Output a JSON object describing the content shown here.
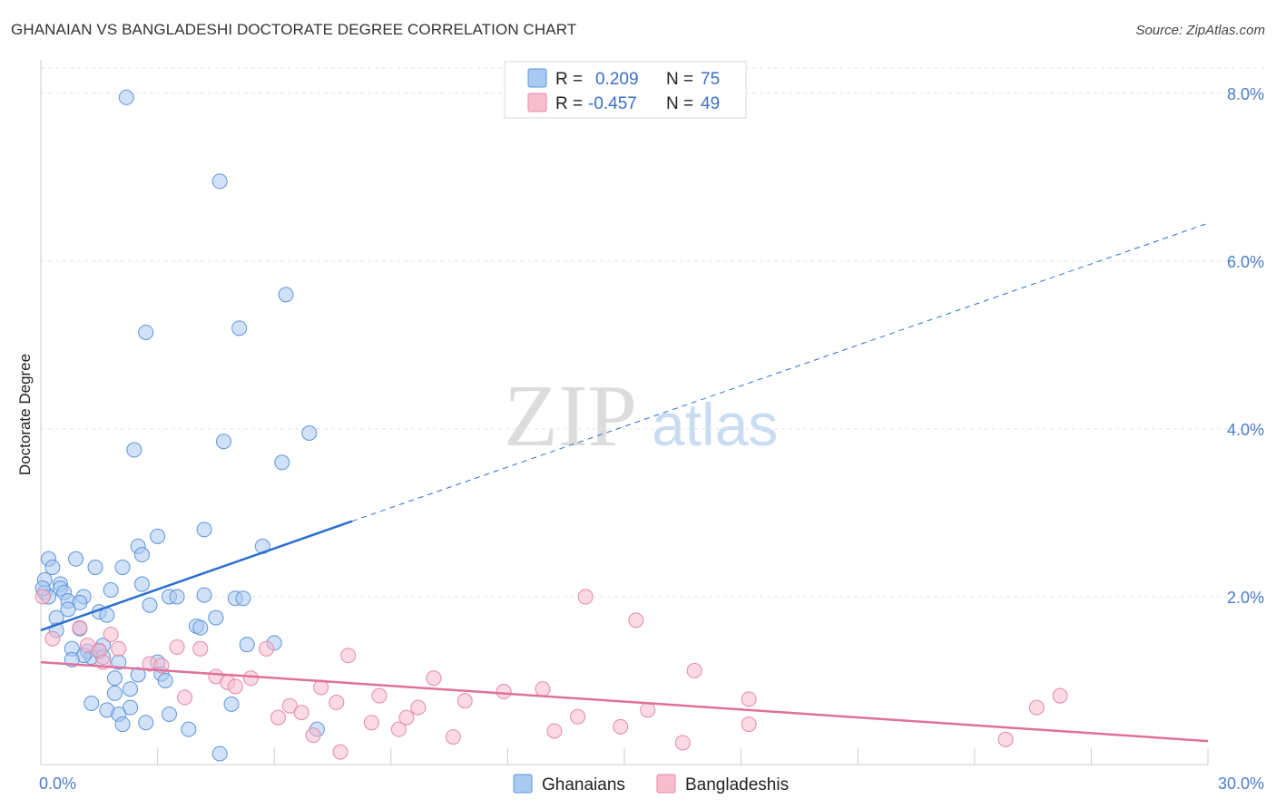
{
  "header": {
    "title": "GHANAIAN VS BANGLADESHI DOCTORATE DEGREE CORRELATION CHART",
    "source": "Source: ZipAtlas.com"
  },
  "watermark": {
    "zip": "ZIP",
    "atlas": "atlas"
  },
  "legend": {
    "rows": [
      {
        "r_label": "R =",
        "r_value": "0.209",
        "n_label": "N =",
        "n_value": "75",
        "color": "#a9c9f2"
      },
      {
        "r_label": "R =",
        "r_value": "-0.457",
        "n_label": "N =",
        "n_value": "49",
        "color": "#f7bccd"
      }
    ]
  },
  "bottom_legend": {
    "items": [
      {
        "label": "Ghanaians",
        "color": "#a9c9f2"
      },
      {
        "label": "Bangladeshis",
        "color": "#f7bccd"
      }
    ]
  },
  "chart_data": {
    "type": "scatter",
    "title": "GHANAIAN VS BANGLADESHI DOCTORATE DEGREE CORRELATION CHART",
    "xlabel": "",
    "ylabel": "Doctorate Degree",
    "xlim": [
      0,
      30
    ],
    "ylim": [
      0,
      8.3
    ],
    "x_tick_labels": [
      "0.0%",
      "30.0%"
    ],
    "y_ticks": [
      2,
      4,
      6,
      8
    ],
    "y_tick_labels": [
      "2.0%",
      "4.0%",
      "6.0%",
      "8.0%"
    ],
    "grid": true,
    "legend_position": "top-center",
    "series": [
      {
        "name": "Ghanaians",
        "color": "#a9c9f2",
        "stroke": "#5f95d8",
        "line_color": "#2a6fd0",
        "trend": {
          "x0": 0,
          "y0": 1.6,
          "x1": 8,
          "y1": 2.9,
          "dash_to_x": 30,
          "dash_to_y": 6.45
        },
        "points": [
          [
            2.2,
            7.95
          ],
          [
            4.6,
            6.95
          ],
          [
            6.3,
            5.6
          ],
          [
            5.1,
            5.2
          ],
          [
            2.7,
            5.15
          ],
          [
            6.9,
            3.95
          ],
          [
            4.7,
            3.85
          ],
          [
            2.4,
            3.75
          ],
          [
            6.2,
            3.6
          ],
          [
            4.2,
            2.8
          ],
          [
            3.0,
            2.72
          ],
          [
            2.5,
            2.6
          ],
          [
            5.7,
            2.6
          ],
          [
            2.6,
            2.5
          ],
          [
            0.2,
            2.45
          ],
          [
            0.9,
            2.45
          ],
          [
            0.3,
            2.35
          ],
          [
            1.4,
            2.35
          ],
          [
            2.1,
            2.35
          ],
          [
            0.1,
            2.2
          ],
          [
            0.5,
            2.15
          ],
          [
            2.6,
            2.15
          ],
          [
            0.5,
            2.1
          ],
          [
            1.8,
            2.08
          ],
          [
            0.6,
            2.05
          ],
          [
            0.1,
            2.05
          ],
          [
            3.3,
            2.0
          ],
          [
            3.5,
            2.0
          ],
          [
            4.2,
            2.02
          ],
          [
            5.0,
            1.98
          ],
          [
            5.2,
            1.98
          ],
          [
            1.1,
            2.0
          ],
          [
            0.7,
            1.95
          ],
          [
            1.0,
            1.93
          ],
          [
            2.8,
            1.9
          ],
          [
            0.7,
            1.85
          ],
          [
            1.5,
            1.82
          ],
          [
            1.7,
            1.78
          ],
          [
            4.5,
            1.75
          ],
          [
            0.4,
            1.75
          ],
          [
            4.0,
            1.65
          ],
          [
            4.1,
            1.63
          ],
          [
            1.0,
            1.62
          ],
          [
            0.4,
            1.6
          ],
          [
            1.6,
            1.42
          ],
          [
            5.3,
            1.43
          ],
          [
            6.0,
            1.45
          ],
          [
            0.8,
            1.38
          ],
          [
            1.5,
            1.35
          ],
          [
            1.2,
            1.35
          ],
          [
            1.3,
            1.28
          ],
          [
            1.6,
            1.28
          ],
          [
            1.1,
            1.3
          ],
          [
            3.0,
            1.22
          ],
          [
            0.8,
            1.25
          ],
          [
            2.0,
            1.22
          ],
          [
            3.1,
            1.08
          ],
          [
            2.5,
            1.07
          ],
          [
            1.9,
            1.03
          ],
          [
            3.2,
            1.0
          ],
          [
            2.3,
            0.9
          ],
          [
            1.9,
            0.85
          ],
          [
            1.3,
            0.73
          ],
          [
            4.9,
            0.72
          ],
          [
            2.3,
            0.68
          ],
          [
            1.7,
            0.65
          ],
          [
            2.0,
            0.6
          ],
          [
            3.3,
            0.6
          ],
          [
            2.7,
            0.5
          ],
          [
            2.1,
            0.48
          ],
          [
            3.8,
            0.42
          ],
          [
            7.1,
            0.42
          ],
          [
            4.6,
            0.13
          ],
          [
            0.2,
            2.0
          ],
          [
            0.05,
            2.1
          ]
        ]
      },
      {
        "name": "Bangladeshis",
        "color": "#f7bccd",
        "stroke": "#e48aa6",
        "line_color": "#e0709a",
        "trend": {
          "x0": 0,
          "y0": 1.22,
          "x1": 30,
          "y1": 0.28
        },
        "points": [
          [
            0.05,
            2.0
          ],
          [
            0.3,
            1.5
          ],
          [
            1.0,
            1.63
          ],
          [
            1.8,
            1.55
          ],
          [
            1.2,
            1.42
          ],
          [
            2.0,
            1.38
          ],
          [
            1.5,
            1.36
          ],
          [
            3.5,
            1.4
          ],
          [
            4.1,
            1.38
          ],
          [
            5.8,
            1.38
          ],
          [
            7.9,
            1.3
          ],
          [
            2.8,
            1.2
          ],
          [
            3.1,
            1.18
          ],
          [
            1.6,
            1.22
          ],
          [
            4.5,
            1.05
          ],
          [
            5.4,
            1.03
          ],
          [
            4.8,
            0.98
          ],
          [
            5.0,
            0.93
          ],
          [
            7.2,
            0.92
          ],
          [
            10.1,
            1.03
          ],
          [
            11.9,
            0.87
          ],
          [
            12.9,
            0.9
          ],
          [
            16.8,
            1.12
          ],
          [
            14.0,
            2.0
          ],
          [
            15.3,
            1.72
          ],
          [
            3.7,
            0.8
          ],
          [
            8.7,
            0.82
          ],
          [
            7.6,
            0.74
          ],
          [
            6.4,
            0.7
          ],
          [
            9.7,
            0.68
          ],
          [
            10.9,
            0.76
          ],
          [
            15.6,
            0.65
          ],
          [
            18.2,
            0.78
          ],
          [
            6.7,
            0.62
          ],
          [
            6.1,
            0.56
          ],
          [
            9.4,
            0.56
          ],
          [
            13.8,
            0.57
          ],
          [
            8.5,
            0.5
          ],
          [
            9.2,
            0.42
          ],
          [
            13.2,
            0.4
          ],
          [
            14.9,
            0.45
          ],
          [
            18.2,
            0.48
          ],
          [
            7.0,
            0.35
          ],
          [
            10.6,
            0.33
          ],
          [
            16.5,
            0.26
          ],
          [
            7.7,
            0.15
          ],
          [
            24.8,
            0.3
          ],
          [
            25.6,
            0.68
          ],
          [
            26.2,
            0.82
          ]
        ]
      }
    ]
  }
}
